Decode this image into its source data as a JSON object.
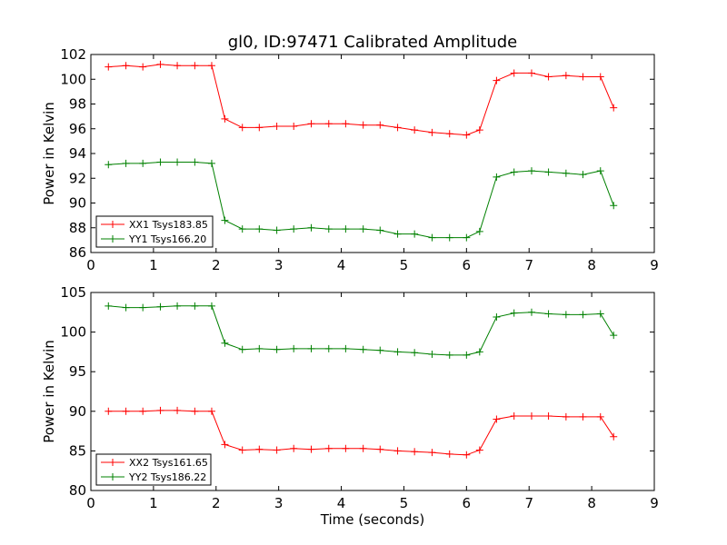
{
  "chart_data": [
    {
      "type": "line",
      "title": "gl0, ID:97471 Calibrated Amplitude",
      "xlabel": "",
      "ylabel": "Power in Kelvin",
      "xlim": [
        0,
        9
      ],
      "ylim": [
        86,
        102
      ],
      "xticks": [
        "0",
        "1",
        "2",
        "3",
        "4",
        "5",
        "6",
        "7",
        "8",
        "9"
      ],
      "yticks": [
        "86",
        "88",
        "90",
        "92",
        "94",
        "96",
        "98",
        "100",
        "102"
      ],
      "grid": false,
      "legend_position": "lower-left",
      "x": [
        0.28,
        0.56,
        0.83,
        1.11,
        1.38,
        1.66,
        1.93,
        2.14,
        2.42,
        2.69,
        2.97,
        3.24,
        3.52,
        3.8,
        4.07,
        4.35,
        4.62,
        4.9,
        5.17,
        5.45,
        5.73,
        6.0,
        6.21,
        6.48,
        6.76,
        7.04,
        7.31,
        7.59,
        7.86,
        8.14,
        8.35
      ],
      "series": [
        {
          "name": "XX1 Tsys183.85",
          "color": "#ff0000",
          "values": [
            101.0,
            101.1,
            101.0,
            101.2,
            101.1,
            101.1,
            101.1,
            96.8,
            96.1,
            96.1,
            96.2,
            96.2,
            96.4,
            96.4,
            96.4,
            96.3,
            96.3,
            96.1,
            95.9,
            95.7,
            95.6,
            95.5,
            95.9,
            99.9,
            100.5,
            100.5,
            100.2,
            100.3,
            100.2,
            100.2,
            97.7
          ]
        },
        {
          "name": "YY1 Tsys166.20",
          "color": "#008000",
          "values": [
            93.1,
            93.2,
            93.2,
            93.3,
            93.3,
            93.3,
            93.2,
            88.6,
            87.9,
            87.9,
            87.8,
            87.9,
            88.0,
            87.9,
            87.9,
            87.9,
            87.8,
            87.5,
            87.5,
            87.2,
            87.2,
            87.2,
            87.7,
            92.1,
            92.5,
            92.6,
            92.5,
            92.4,
            92.3,
            92.6,
            89.8
          ]
        }
      ]
    },
    {
      "type": "line",
      "title": "",
      "xlabel": "Time (seconds)",
      "ylabel": "Power in Kelvin",
      "xlim": [
        0,
        9
      ],
      "ylim": [
        80,
        105
      ],
      "xticks": [
        "0",
        "1",
        "2",
        "3",
        "4",
        "5",
        "6",
        "7",
        "8",
        "9"
      ],
      "yticks": [
        "80",
        "85",
        "90",
        "95",
        "100",
        "105"
      ],
      "grid": false,
      "legend_position": "lower-left",
      "x": [
        0.28,
        0.56,
        0.83,
        1.11,
        1.38,
        1.66,
        1.93,
        2.14,
        2.42,
        2.69,
        2.97,
        3.24,
        3.52,
        3.8,
        4.07,
        4.35,
        4.62,
        4.9,
        5.17,
        5.45,
        5.73,
        6.0,
        6.21,
        6.48,
        6.76,
        7.04,
        7.31,
        7.59,
        7.86,
        8.14,
        8.35
      ],
      "series": [
        {
          "name": "XX2 Tsys161.65",
          "color": "#ff0000",
          "values": [
            90.0,
            90.0,
            90.0,
            90.1,
            90.1,
            90.0,
            90.0,
            85.8,
            85.1,
            85.2,
            85.1,
            85.3,
            85.2,
            85.3,
            85.3,
            85.3,
            85.2,
            85.0,
            84.9,
            84.8,
            84.6,
            84.5,
            85.1,
            89.0,
            89.4,
            89.4,
            89.4,
            89.3,
            89.3,
            89.3,
            86.8
          ]
        },
        {
          "name": "YY2 Tsys186.22",
          "color": "#008000",
          "values": [
            103.3,
            103.1,
            103.1,
            103.2,
            103.3,
            103.3,
            103.3,
            98.6,
            97.8,
            97.9,
            97.8,
            97.9,
            97.9,
            97.9,
            97.9,
            97.8,
            97.7,
            97.5,
            97.4,
            97.2,
            97.1,
            97.1,
            97.5,
            101.9,
            102.4,
            102.5,
            102.3,
            102.2,
            102.2,
            102.3,
            99.6
          ]
        }
      ]
    }
  ]
}
